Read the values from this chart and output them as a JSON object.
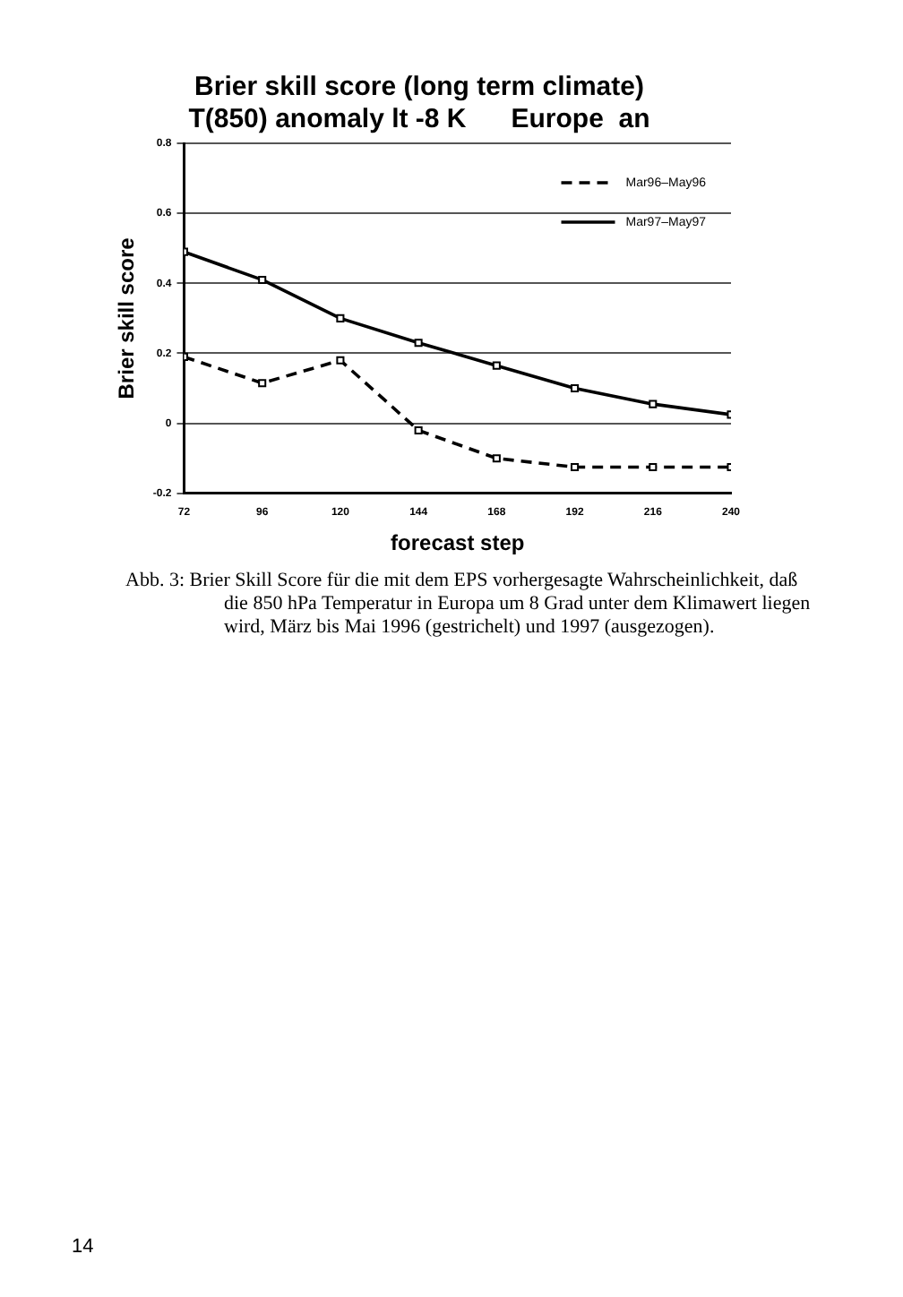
{
  "chart_data": {
    "type": "line",
    "title": "Brier skill score (long term climate)",
    "subtitle": "T(850) anomaly lt -8 K      Europe  an",
    "xlabel": "forecast step",
    "ylabel": "Brier skill score",
    "x": [
      72,
      96,
      120,
      144,
      168,
      192,
      216,
      240
    ],
    "series": [
      {
        "name": "Mar96–May96",
        "color": "#000000",
        "line_style": "dashed",
        "values": [
          0.19,
          0.115,
          0.18,
          -0.02,
          -0.1,
          -0.125,
          -0.125,
          -0.125
        ]
      },
      {
        "name": "Mar97–May97",
        "color": "#000000",
        "line_style": "solid",
        "values": [
          0.49,
          0.41,
          0.3,
          0.23,
          0.165,
          0.1,
          0.055,
          0.025
        ]
      }
    ],
    "xlim": [
      72,
      240
    ],
    "xticks": [
      72,
      96,
      120,
      144,
      168,
      192,
      216,
      240
    ],
    "ylim": [
      -0.2,
      0.8
    ],
    "yticks": [
      -0.2,
      0,
      0.2,
      0.4,
      0.6,
      0.8
    ],
    "grid": "y",
    "legend": "top right",
    "marker": "square",
    "annotations": [
      "Abb. 3: Brier Skill Score für die mit dem EPS vorhergesagte Wahrscheinlichkeit, daß die 850 hPa Temperatur in Europa um 8 Grad unter dem Klimawert liegen wird, März bis Mai 1996 (gestrichelt) und 1997 (ausgezogen).",
      "14"
    ]
  }
}
